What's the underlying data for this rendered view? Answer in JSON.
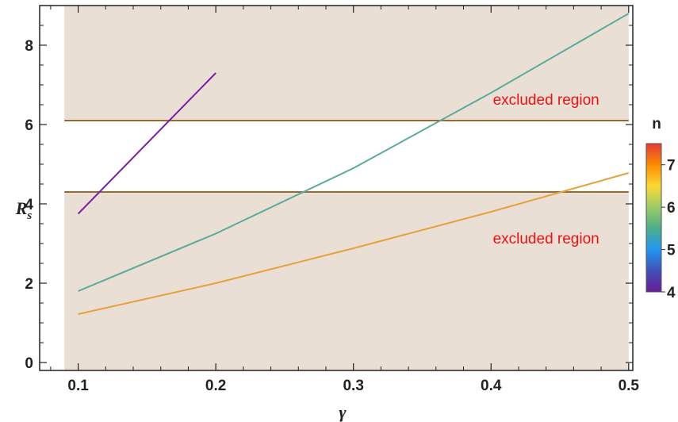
{
  "chart_data": {
    "type": "line",
    "xlabel": "γ",
    "ylabel_main": "R",
    "ylabel_sub": "s",
    "xlim": [
      0.072,
      0.503
    ],
    "ylim": [
      -0.2,
      9.0
    ],
    "x_ticks": [
      0.1,
      0.2,
      0.3,
      0.4,
      0.5
    ],
    "x_tick_labels": [
      "0.1",
      "0.2",
      "0.3",
      "0.4",
      "0.5"
    ],
    "y_ticks": [
      0,
      2,
      4,
      6,
      8
    ],
    "y_tick_labels": [
      "0",
      "2",
      "4",
      "6",
      "8"
    ],
    "grid": false,
    "series": [
      {
        "color": "#7b1fa2",
        "x": [
          0.1,
          0.2
        ],
        "y": [
          3.75,
          7.3
        ]
      },
      {
        "color": "#5aab9b",
        "x": [
          0.1,
          0.2,
          0.3,
          0.4,
          0.5
        ],
        "y": [
          1.8,
          3.25,
          4.9,
          6.8,
          8.8
        ]
      },
      {
        "color": "#e8a03a",
        "x": [
          0.1,
          0.2,
          0.3,
          0.4,
          0.5
        ],
        "y": [
          1.22,
          2.0,
          2.88,
          3.8,
          4.78
        ]
      }
    ],
    "shaded_regions": [
      {
        "label": "excluded region",
        "y_from": 6.1,
        "y_to": 9.0,
        "x_from": 0.09,
        "x_to": 0.5,
        "color": "#eadfd5"
      },
      {
        "label": "excluded region",
        "y_from": -0.2,
        "y_to": 4.3,
        "x_from": 0.09,
        "x_to": 0.5,
        "color": "#eadfd5"
      }
    ],
    "hlines": [
      {
        "y": 6.1,
        "color": "#9c6a2f"
      },
      {
        "y": 4.3,
        "color": "#9c6a2f"
      }
    ],
    "annotations": [
      {
        "text": "excluded region",
        "x": 0.44,
        "y": 6.5,
        "color": "#ee1111"
      },
      {
        "text": "excluded region",
        "x": 0.44,
        "y": 3.0,
        "color": "#ee1111"
      }
    ],
    "legend": {
      "title": "n",
      "type": "colorbar",
      "placement": "right",
      "range": [
        4,
        7.5
      ],
      "ticks": [
        4,
        5,
        6,
        7
      ],
      "tick_labels": [
        "4",
        "5",
        "6",
        "7"
      ],
      "colors": [
        "#6a1b9a",
        "#3f51b5",
        "#2196f3",
        "#4caf8a",
        "#9ccc65",
        "#fdd835",
        "#fb8c00",
        "#e53935"
      ]
    }
  }
}
